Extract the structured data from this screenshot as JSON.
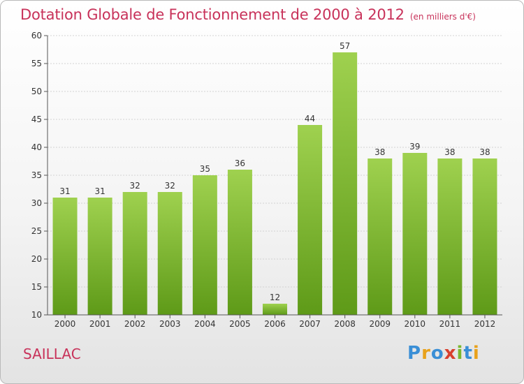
{
  "chart_data": {
    "type": "bar",
    "title": "Dotation Globale de Fonctionnement de 2000 à 2012",
    "subtitle": "(en milliers d'€)",
    "categories": [
      "2000",
      "2001",
      "2002",
      "2003",
      "2004",
      "2005",
      "2006",
      "2007",
      "2008",
      "2009",
      "2010",
      "2011",
      "2012"
    ],
    "values": [
      31,
      31,
      32,
      32,
      35,
      36,
      12,
      44,
      57,
      38,
      39,
      38,
      38
    ],
    "ylim": [
      10,
      60
    ],
    "yticks": [
      10,
      15,
      20,
      25,
      30,
      35,
      40,
      45,
      50,
      55,
      60
    ],
    "grid": true,
    "colors": {
      "bar_top": "#9fd14f",
      "bar_bottom": "#5e9a18"
    }
  },
  "commune": "SAILLAC",
  "logo": {
    "letters": [
      "P",
      "r",
      "o",
      "x",
      "i",
      "t",
      "i"
    ],
    "colors": [
      "#3a8fd6",
      "#e8a21c",
      "#3a8fd6",
      "#d8402e",
      "#7ab82e",
      "#3a8fd6",
      "#e8a21c"
    ]
  }
}
